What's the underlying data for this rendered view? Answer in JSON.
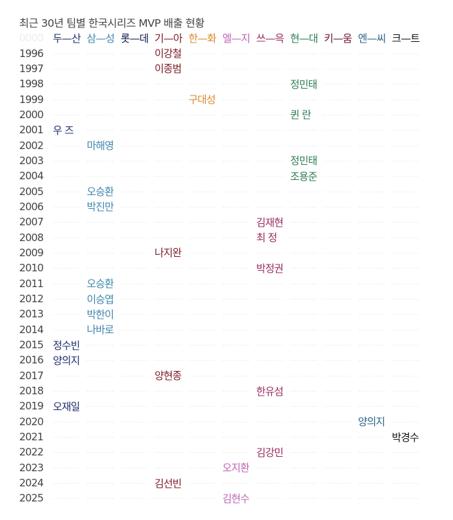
{
  "title": "최근 30년 팀별 한국시리즈 MVP 배출 현황",
  "header_year": "0000",
  "teams": [
    {
      "label": "두—산",
      "color": "#1f2d6b"
    },
    {
      "label": "삼—성",
      "color": "#3d86ad"
    },
    {
      "label": "롯—데",
      "color": "#0c1a4d"
    },
    {
      "label": "기—아",
      "color": "#7d1b26"
    },
    {
      "label": "한—화",
      "color": "#d98a2b"
    },
    {
      "label": "엘—지",
      "color": "#c066b8"
    },
    {
      "label": "쓰—윽",
      "color": "#9a2a5e"
    },
    {
      "label": "현—대",
      "color": "#2f7d55"
    },
    {
      "label": "키—움",
      "color": "#6a1238"
    },
    {
      "label": "엔—씨",
      "color": "#2b6486"
    },
    {
      "label": "크—트",
      "color": "#111111"
    }
  ],
  "rows": [
    {
      "year": "1996",
      "team": 3,
      "name": "이강철"
    },
    {
      "year": "1997",
      "team": 3,
      "name": "이종범"
    },
    {
      "year": "1998",
      "team": 7,
      "name": "정민태"
    },
    {
      "year": "1999",
      "team": 4,
      "name": "구대성"
    },
    {
      "year": "2000",
      "team": 7,
      "name": "퀸 란"
    },
    {
      "year": "2001",
      "team": 0,
      "name": "우 즈"
    },
    {
      "year": "2002",
      "team": 1,
      "name": "마해영"
    },
    {
      "year": "2003",
      "team": 7,
      "name": "정민태"
    },
    {
      "year": "2004",
      "team": 7,
      "name": "조용준"
    },
    {
      "year": "2005",
      "team": 1,
      "name": "오승환"
    },
    {
      "year": "2006",
      "team": 1,
      "name": "박진만"
    },
    {
      "year": "2007",
      "team": 6,
      "name": "김재현"
    },
    {
      "year": "2008",
      "team": 6,
      "name": "최 정"
    },
    {
      "year": "2009",
      "team": 3,
      "name": "나지완"
    },
    {
      "year": "2010",
      "team": 6,
      "name": "박정권"
    },
    {
      "year": "2011",
      "team": 1,
      "name": "오승환"
    },
    {
      "year": "2012",
      "team": 1,
      "name": "이승엽"
    },
    {
      "year": "2013",
      "team": 1,
      "name": "박한이"
    },
    {
      "year": "2014",
      "team": 1,
      "name": "나바로"
    },
    {
      "year": "2015",
      "team": 0,
      "name": "정수빈"
    },
    {
      "year": "2016",
      "team": 0,
      "name": "양의지"
    },
    {
      "year": "2017",
      "team": 3,
      "name": "양현종"
    },
    {
      "year": "2018",
      "team": 6,
      "name": "한유섬"
    },
    {
      "year": "2019",
      "team": 0,
      "name": "오재일"
    },
    {
      "year": "2020",
      "team": 9,
      "name": "양의지"
    },
    {
      "year": "2021",
      "team": 10,
      "name": "박경수"
    },
    {
      "year": "2022",
      "team": 6,
      "name": "김강민"
    },
    {
      "year": "2023",
      "team": 5,
      "name": "오지환"
    },
    {
      "year": "2024",
      "team": 3,
      "name": "김선빈"
    },
    {
      "year": "2025",
      "team": 5,
      "name": "김현수"
    }
  ]
}
